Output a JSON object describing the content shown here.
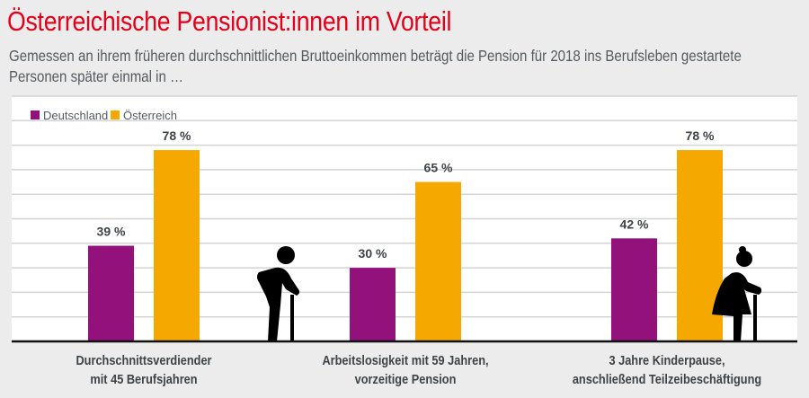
{
  "title": "Österreichische Pensionist:innen im Vorteil",
  "subtitle": "Gemessen an ihrem früheren durchschnittlichen Bruttoeinkommen beträgt die Pension für 2018 ins Berufsleben gestartete Personen später einmal in …",
  "chart_data": {
    "type": "bar",
    "categories": [
      "Durchschnittsverdiender mit 45 Berufsjahren",
      "Arbeitslosigkeit mit 59 Jahren, vorzeitige Pension",
      "3 Jahre Kinderpause, anschließend Teilzeibeschäftigung"
    ],
    "category_lines": [
      [
        "Durchschnittsverdiender",
        "mit 45 Berufsjahren"
      ],
      [
        "Arbeitslosigkeit mit 59 Jahren,",
        "vorzeitige Pension"
      ],
      [
        "3 Jahre Kinderpause,",
        "anschließend Teilzeibeschäftigung"
      ]
    ],
    "series": [
      {
        "name": "Deutschland",
        "values": [
          39,
          30,
          42
        ],
        "color": "#92117a"
      },
      {
        "name": "Österreich",
        "values": [
          78,
          65,
          78
        ],
        "color": "#f5a800"
      }
    ],
    "value_suffix": " %",
    "ylim": [
      0,
      100
    ],
    "grid": true,
    "legend": "top-left",
    "icons": [
      "elderly-man-with-cane-icon",
      "elderly-woman-with-cane-icon"
    ]
  }
}
